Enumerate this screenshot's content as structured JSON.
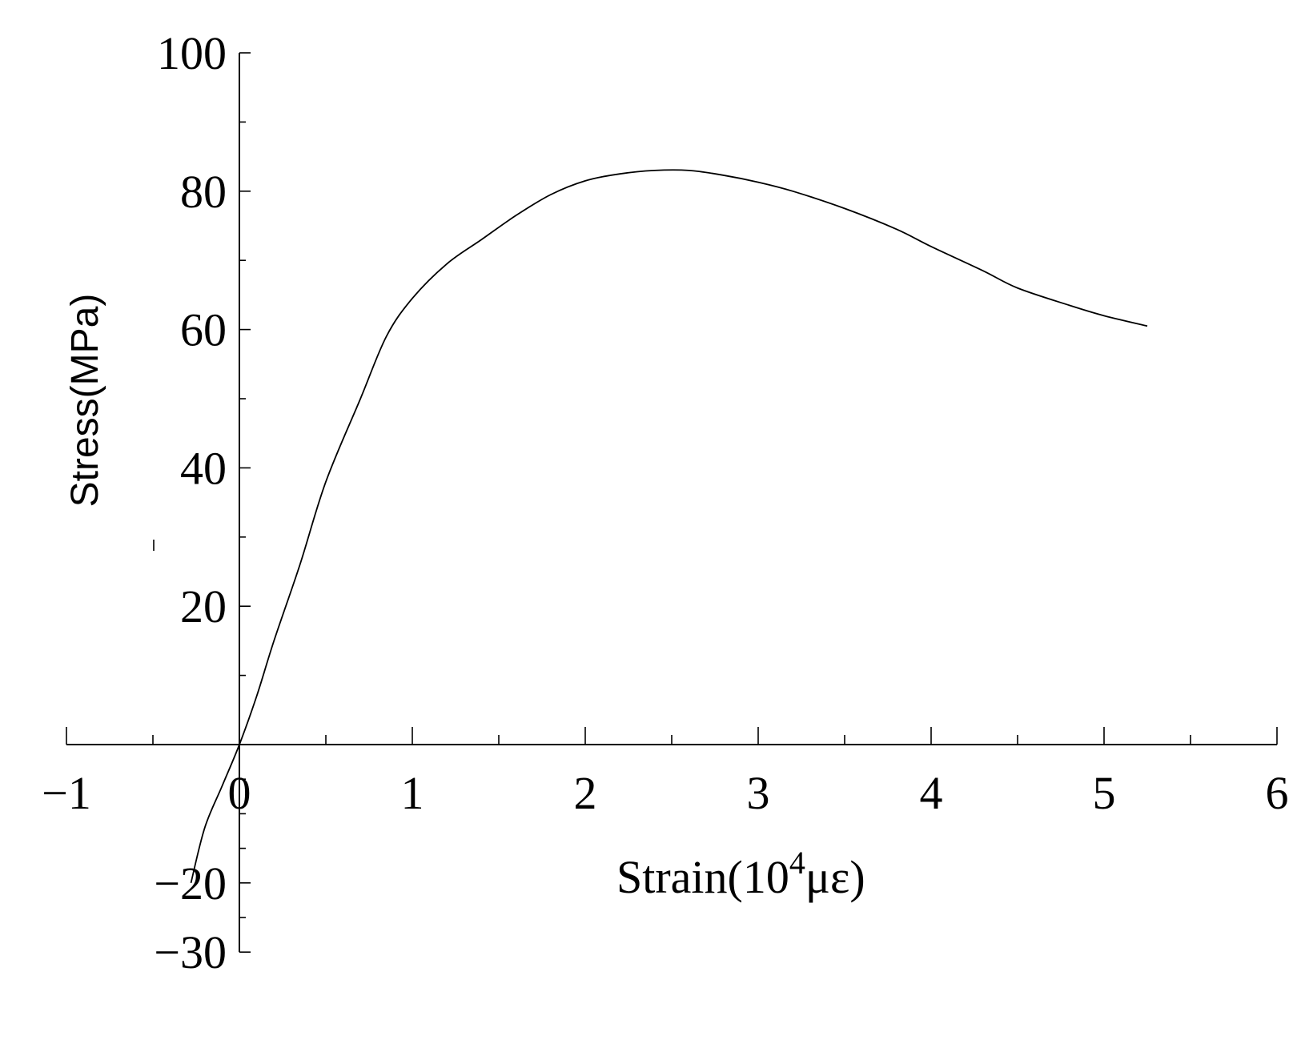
{
  "chart_data": {
    "type": "line",
    "title": "",
    "xlabel": {
      "main": "Strain(10",
      "exponent": "4",
      "unit": "με",
      "close": ")"
    },
    "ylabel": "Stress(MPa)",
    "xlim": [
      -1,
      6
    ],
    "ylim": [
      -30,
      100
    ],
    "x_ticks": [
      -1,
      0,
      1,
      2,
      3,
      4,
      5,
      6
    ],
    "x_tick_labels": [
      "−1",
      "0",
      "1",
      "2",
      "3",
      "4",
      "5",
      "6"
    ],
    "x_minor_ticks": [
      -0.5,
      0.5,
      1.5,
      2.5,
      3.5,
      4.5,
      5.5
    ],
    "y_ticks": [
      -30,
      -20,
      20,
      40,
      60,
      80,
      100
    ],
    "y_tick_labels": [
      "−30",
      "−20",
      "20",
      "40",
      "60",
      "80",
      "100"
    ],
    "y_minor_ticks": [
      -25,
      -15,
      -10,
      -5,
      10,
      30,
      50,
      70,
      90
    ],
    "grid": false,
    "series": [
      {
        "x": [
          -0.28,
          -0.2,
          -0.1,
          0,
          0.1,
          0.2,
          0.35,
          0.5,
          0.7,
          0.85,
          1.0,
          1.2,
          1.4,
          1.6,
          1.8,
          2.0,
          2.2,
          2.4,
          2.6,
          2.8,
          3.0,
          3.2,
          3.5,
          3.8,
          4.0,
          4.3,
          4.5,
          4.8,
          5.0,
          5.25
        ],
        "y": [
          -20,
          -12,
          -6,
          0,
          7,
          15,
          26,
          38,
          50,
          59,
          64.5,
          69.5,
          73,
          76.5,
          79.5,
          81.5,
          82.5,
          83,
          83,
          82.3,
          81.3,
          80,
          77.5,
          74.5,
          72,
          68.5,
          66,
          63.5,
          62,
          60.5
        ]
      }
    ]
  }
}
